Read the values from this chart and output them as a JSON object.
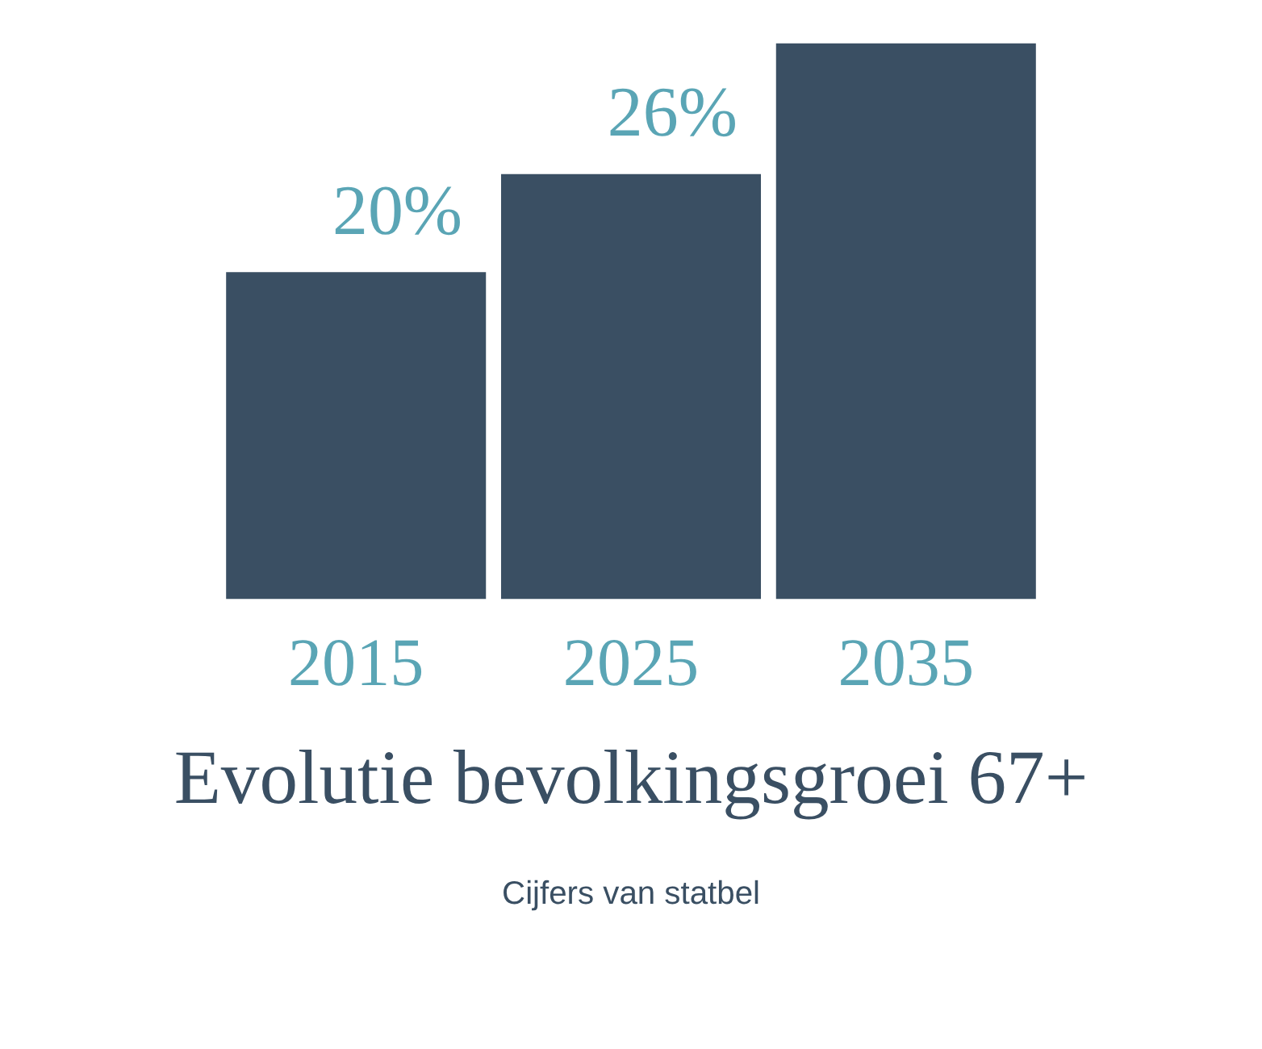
{
  "chart_data": {
    "type": "bar",
    "title": "Evolutie bevolkingsgroei 67+",
    "subtitle": "Cijfers van statbel",
    "categories": [
      "2015",
      "2025",
      "2035"
    ],
    "values": [
      20,
      26,
      34
    ],
    "value_labels": [
      "20%",
      "26%",
      null
    ],
    "color": "#3a4f63",
    "grid": false
  }
}
